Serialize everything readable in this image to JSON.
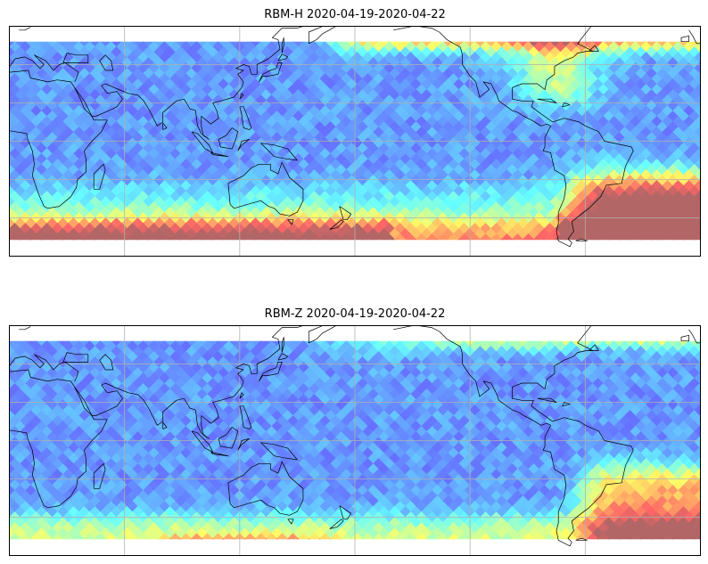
{
  "figure": {
    "panels": [
      {
        "title": "RBM-H 2020-04-19-2020-04-22",
        "variable": "H"
      },
      {
        "title": "RBM-Z 2020-04-19-2020-04-22",
        "variable": "Z"
      }
    ],
    "colormap": "jet",
    "coast_color": "#000000",
    "grid_color": "#b0b0b0"
  }
}
